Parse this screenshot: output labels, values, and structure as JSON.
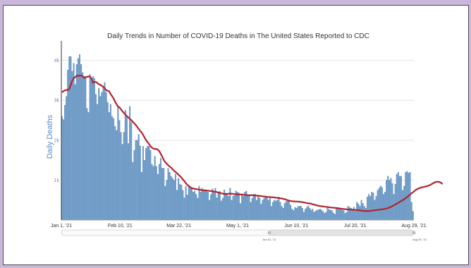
{
  "chart_data": {
    "type": "bar",
    "title": "Daily Trends in Number of COVID-19 Deaths in The United States Reported to CDC",
    "ylabel": "Daily Deaths",
    "ylim": [
      0,
      4400
    ],
    "y_ticks": [
      {
        "value": 1000,
        "label": "1k"
      },
      {
        "value": 2000,
        "label": "2k"
      },
      {
        "value": 3000,
        "label": "3k"
      },
      {
        "value": 4000,
        "label": "4k"
      }
    ],
    "x_start": "2021-01-01",
    "x_end": "2021-08-29",
    "x_ticks": [
      {
        "date": "2021-01-01",
        "label": "Jan 1, '21"
      },
      {
        "date": "2021-02-10",
        "label": "Feb 10, '21"
      },
      {
        "date": "2021-03-22",
        "label": "Mar 22, '21"
      },
      {
        "date": "2021-05-01",
        "label": "May 1, '21"
      },
      {
        "date": "2021-06-10",
        "label": "Jun 10, '21"
      },
      {
        "date": "2021-07-20",
        "label": "Jul 20, '21"
      },
      {
        "date": "2021-08-29",
        "label": "Aug 29, '21"
      }
    ],
    "grid": true,
    "colors": {
      "bars": "#6b9ac8",
      "bar_edge": "#4a7aa8",
      "average_line": "#b2232e",
      "grid": "#e3e3e3"
    },
    "range_selector": {
      "start_label": "Jan 01, '21",
      "end_label": "Aug 29, '21"
    },
    "daily_deaths": [
      2600,
      2520,
      2880,
      3100,
      3760,
      4100,
      4100,
      3730,
      3930,
      3400,
      3900,
      4050,
      4150,
      3900,
      3700,
      3600,
      3600,
      2800,
      2700,
      3650,
      3500,
      3600,
      3550,
      3150,
      2900,
      3300,
      3100,
      3200,
      3350,
      3450,
      3200,
      2950,
      2700,
      2900,
      2600,
      2550,
      2350,
      2250,
      2850,
      2500,
      2200,
      1900,
      2200,
      2750,
      2600,
      1920,
      2850,
      2450,
      1450,
      1750,
      2000,
      2000,
      2150,
      1860,
      1200,
      1850,
      1500,
      1800,
      1850,
      1850,
      1750,
      1400,
      1350,
      1600,
      1350,
      1150,
      1400,
      1550,
      1300,
      1300,
      850,
      1000,
      1300,
      1200,
      1100,
      1050,
      1000,
      1150,
      750,
      1050,
      900,
      880,
      750,
      560,
      850,
      630,
      850,
      800,
      800,
      700,
      730,
      650,
      550,
      850,
      700,
      800,
      750,
      720,
      730,
      700,
      500,
      640,
      780,
      700,
      800,
      560,
      700,
      720,
      480,
      550,
      760,
      680,
      650,
      600,
      800,
      500,
      600,
      620,
      730,
      700,
      680,
      420,
      650,
      600,
      700,
      730,
      600,
      640,
      450,
      550,
      650,
      650,
      500,
      600,
      550,
      400,
      500,
      550,
      600,
      560,
      500,
      550,
      350,
      450,
      500,
      480,
      500,
      580,
      450,
      350,
      300,
      420,
      470,
      470,
      500,
      380,
      280,
      240,
      320,
      300,
      340,
      350,
      350,
      300,
      200,
      280,
      320,
      360,
      300,
      250,
      280,
      200,
      230,
      250,
      260,
      280,
      250,
      220,
      170,
      200,
      300,
      270,
      250,
      240,
      180,
      150,
      300,
      320,
      280,
      280,
      250,
      240,
      170,
      200,
      350,
      320,
      300,
      280,
      320,
      250,
      450,
      400,
      350,
      500,
      420,
      350,
      300,
      580,
      650,
      600,
      700,
      680,
      500,
      600,
      750,
      800,
      850,
      820,
      650,
      700,
      1000,
      1100,
      1000,
      1050,
      920,
      650,
      900,
      1150,
      1200,
      1100,
      1100,
      750,
      850,
      1200,
      1220,
      1180,
      1200,
      450,
      220
    ],
    "seven_day_average": [
      3200,
      3230,
      3250,
      3260,
      3260,
      3290,
      3400,
      3500,
      3560,
      3580,
      3620,
      3610,
      3620,
      3620,
      3600,
      3560,
      3580,
      3590,
      3600,
      3590,
      3530,
      3440,
      3460,
      3460,
      3430,
      3400,
      3390,
      3360,
      3340,
      3300,
      3250,
      3240,
      3220,
      3150,
      3100,
      3040,
      2960,
      2900,
      2840,
      2820,
      2770,
      2720,
      2680,
      2640,
      2600,
      2570,
      2530,
      2500,
      2460,
      2420,
      2380,
      2330,
      2280,
      2230,
      2190,
      2130,
      2060,
      2000,
      1950,
      1900,
      1850,
      1810,
      1790,
      1780,
      1780,
      1760,
      1720,
      1650,
      1580,
      1500,
      1450,
      1410,
      1370,
      1340,
      1310,
      1270,
      1230,
      1200,
      1170,
      1130,
      1100,
      1060,
      1010,
      970,
      920,
      880,
      850,
      820,
      800,
      790,
      780,
      775,
      770,
      760,
      755,
      750,
      745,
      745,
      740,
      735,
      730,
      725,
      720,
      715,
      710,
      700,
      690,
      680,
      670,
      660,
      655,
      650,
      655,
      660,
      660,
      660,
      655,
      650,
      645,
      640,
      640,
      640,
      638,
      635,
      630,
      625,
      620,
      620,
      620,
      620,
      618,
      615,
      612,
      610,
      605,
      600,
      595,
      590,
      585,
      580,
      578,
      575,
      572,
      570,
      565,
      560,
      555,
      550,
      545,
      540,
      530,
      520,
      510,
      495,
      485,
      475,
      470,
      468,
      465,
      465,
      460,
      460,
      455,
      448,
      440,
      432,
      425,
      420,
      415,
      405,
      395,
      385,
      375,
      365,
      355,
      350,
      345,
      340,
      335,
      330,
      325,
      320,
      315,
      312,
      310,
      305,
      300,
      295,
      290,
      285,
      280,
      276,
      272,
      268,
      265,
      262,
      260,
      258,
      255,
      252,
      250,
      245,
      240,
      235,
      230,
      228,
      226,
      225,
      226,
      230,
      235,
      240,
      245,
      250,
      255,
      260,
      265,
      270,
      275,
      282,
      290,
      300,
      315,
      332,
      350,
      370,
      390,
      412,
      434,
      456,
      478,
      500,
      525,
      550,
      580,
      610,
      640,
      670,
      700,
      730,
      760,
      780,
      795,
      810,
      820,
      828,
      836,
      845,
      855,
      870,
      890,
      910,
      930,
      950,
      960,
      960,
      950,
      930,
      900
    ]
  }
}
